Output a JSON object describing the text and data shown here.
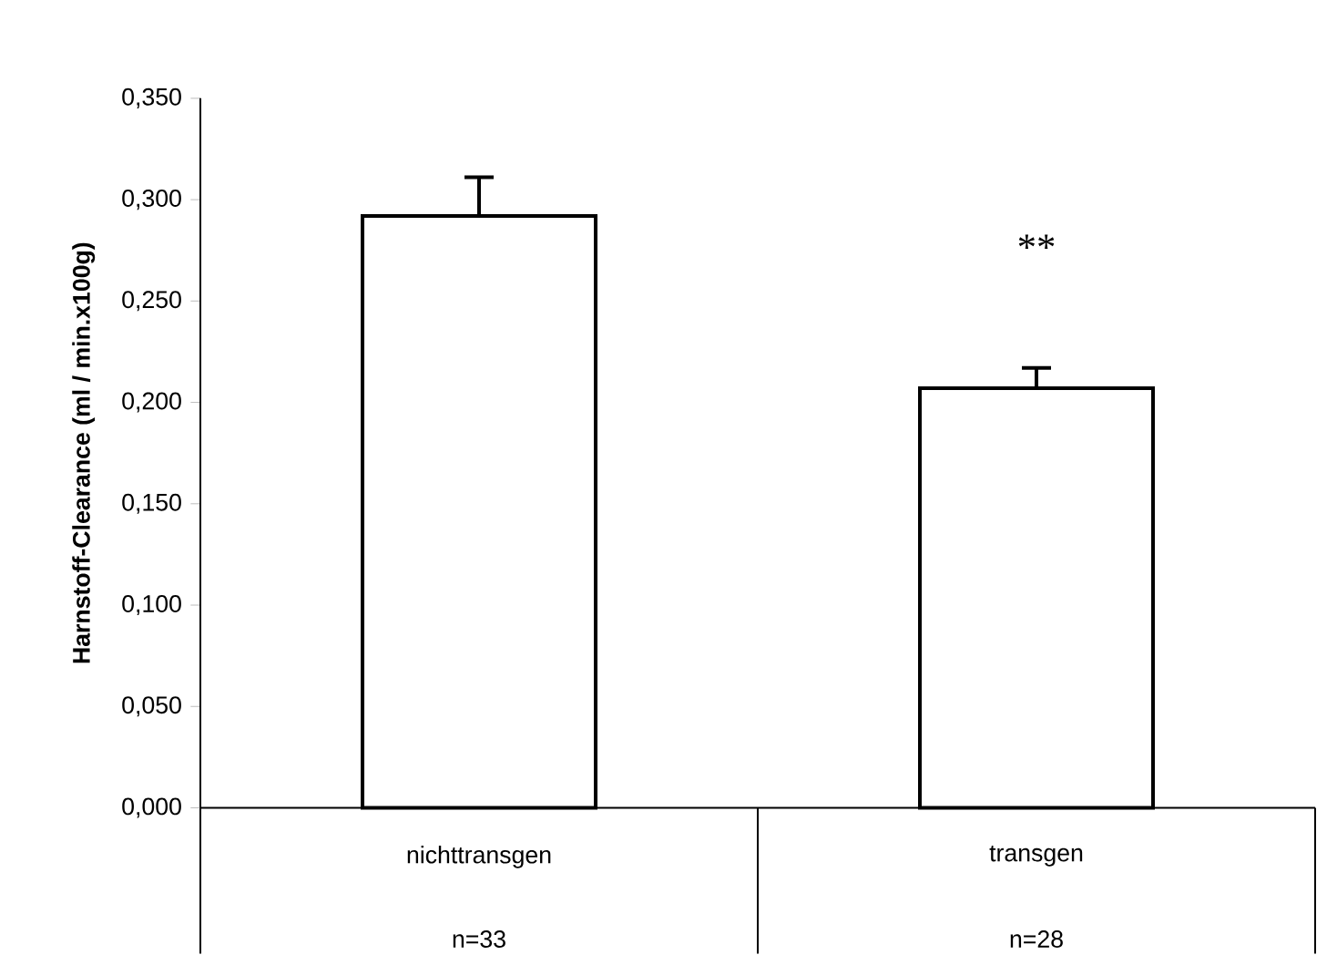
{
  "chart_data": {
    "type": "bar",
    "ylabel": "Harnstoff-Clearance (ml / min.x100g)",
    "categories": [
      "nichttransgen",
      "transgen"
    ],
    "values": [
      0.292,
      0.207
    ],
    "errors": [
      0.019,
      0.01
    ],
    "color": "#ffffff",
    "ylim": [
      0,
      0.35
    ],
    "yticks": [
      {
        "value": 0,
        "label": "0,000"
      },
      {
        "value": 0.05,
        "label": "0,050"
      },
      {
        "value": 0.1,
        "label": "0,100"
      },
      {
        "value": 0.15,
        "label": "0,150"
      },
      {
        "value": 0.2,
        "label": "0,200"
      },
      {
        "value": 0.25,
        "label": "0,250"
      },
      {
        "value": 0.3,
        "label": "0,300"
      },
      {
        "value": 0.35,
        "label": "0,350"
      }
    ],
    "annotations": [
      "**",
      "n=33",
      "n=28"
    ],
    "grid": false
  }
}
